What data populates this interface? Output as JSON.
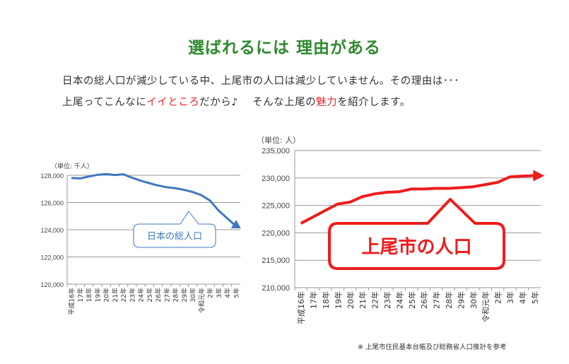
{
  "header": {
    "title": "選ばれるには 理由がある"
  },
  "intro": {
    "line1": "日本の総人口が減少している中、上尾市の人口は減少していません。その理由は･･･",
    "line2_a": "上尾ってこんなに",
    "line2_red1": "イイところ",
    "line2_b": "だから♪　 そんな上尾の",
    "line2_red2": "魅力",
    "line2_c": "を紹介します。"
  },
  "chart_data": [
    {
      "type": "line",
      "unit_label": "（単位: 千人）",
      "callout": "日本の総人口",
      "color": "#3c78c0",
      "categories": [
        "平成16年",
        "17年",
        "18年",
        "19年",
        "20年",
        "21年",
        "22年",
        "23年",
        "24年",
        "25年",
        "26年",
        "27年",
        "28年",
        "29年",
        "30年",
        "令和元年",
        "2年",
        "3年",
        "4年",
        "5年"
      ],
      "values": [
        127800,
        127770,
        127910,
        128030,
        128090,
        128020,
        128070,
        127820,
        127600,
        127420,
        127250,
        127120,
        127050,
        126930,
        126770,
        126540,
        126140,
        125400,
        124830,
        124260
      ],
      "ylim": [
        120000,
        128000
      ],
      "yticks": [
        "120,000",
        "122,000",
        "124,000",
        "126,000",
        "128,000"
      ],
      "grid": true
    },
    {
      "type": "line",
      "unit_label": "（単位: 人）",
      "callout": "上尾市の人口",
      "color": "#ee1c1c",
      "categories": [
        "平成16年",
        "17年",
        "18年",
        "19年",
        "20年",
        "21年",
        "22年",
        "23年",
        "24年",
        "25年",
        "26年",
        "27年",
        "28年",
        "29年",
        "30年",
        "令和元年",
        "2年",
        "3年",
        "4年",
        "5年"
      ],
      "values": [
        221720,
        222900,
        224100,
        225260,
        225600,
        226600,
        227100,
        227400,
        227500,
        228000,
        228000,
        228100,
        228100,
        228230,
        228400,
        228800,
        229200,
        230200,
        230350,
        230430
      ],
      "ylim": [
        210000,
        235000
      ],
      "yticks": [
        "210,000",
        "215,000",
        "220,000",
        "225,000",
        "230,000",
        "235,000"
      ],
      "grid": true
    }
  ],
  "footnote": "※ 上尾市住民基本台帳及び総務省人口推計を参考"
}
